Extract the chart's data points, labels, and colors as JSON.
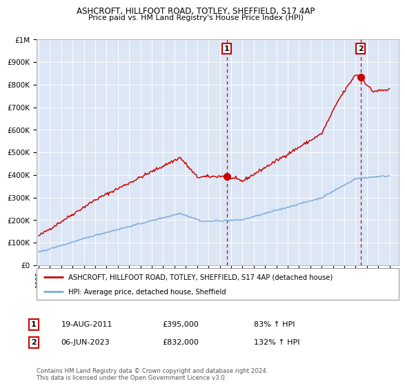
{
  "title1": "ASHCROFT, HILLFOOT ROAD, TOTLEY, SHEFFIELD, S17 4AP",
  "title2": "Price paid vs. HM Land Registry's House Price Index (HPI)",
  "ylabel_ticks": [
    "£0",
    "£100K",
    "£200K",
    "£300K",
    "£400K",
    "£500K",
    "£600K",
    "£700K",
    "£800K",
    "£900K",
    "£1M"
  ],
  "ytick_values": [
    0,
    100000,
    200000,
    300000,
    400000,
    500000,
    600000,
    700000,
    800000,
    900000,
    1000000
  ],
  "ylim": [
    0,
    1000000
  ],
  "xlim_start": 1994.8,
  "xlim_end": 2026.8,
  "xtick_years": [
    1995,
    1996,
    1997,
    1998,
    1999,
    2000,
    2001,
    2002,
    2003,
    2004,
    2005,
    2006,
    2007,
    2008,
    2009,
    2010,
    2011,
    2012,
    2013,
    2014,
    2015,
    2016,
    2017,
    2018,
    2019,
    2020,
    2021,
    2022,
    2023,
    2024,
    2025,
    2026
  ],
  "red_color": "#cc0000",
  "blue_color": "#7aaadd",
  "marker_color": "#cc0000",
  "vline_color": "#cc0000",
  "bg_color": "#dce6f5",
  "sale1_x": 2011.63,
  "sale1_y": 395000,
  "sale2_x": 2023.45,
  "sale2_y": 832000,
  "legend_line1": "ASHCROFT, HILLFOOT ROAD, TOTLEY, SHEFFIELD, S17 4AP (detached house)",
  "legend_line2": "HPI: Average price, detached house, Sheffield",
  "table_row1_num": "1",
  "table_row1_date": "19-AUG-2011",
  "table_row1_price": "£395,000",
  "table_row1_hpi": "83% ↑ HPI",
  "table_row2_num": "2",
  "table_row2_date": "06-JUN-2023",
  "table_row2_price": "£832,000",
  "table_row2_hpi": "132% ↑ HPI",
  "footer": "Contains HM Land Registry data © Crown copyright and database right 2024.\nThis data is licensed under the Open Government Licence v3.0."
}
